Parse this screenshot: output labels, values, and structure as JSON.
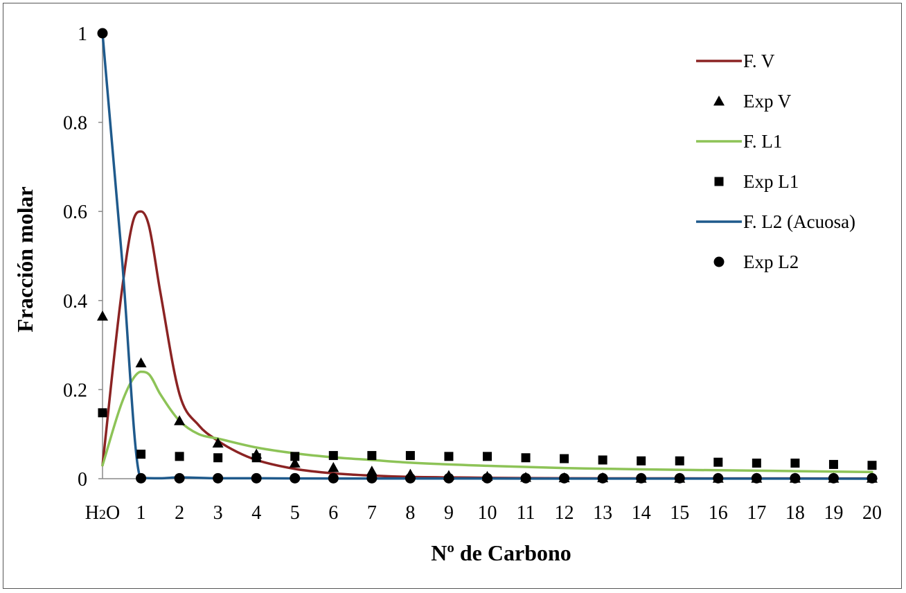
{
  "chart_data": {
    "type": "line",
    "title": "",
    "xlabel": "Nº de Carbono",
    "ylabel": "Fracción molar",
    "x_categories": [
      "H2O",
      "1",
      "2",
      "3",
      "4",
      "5",
      "6",
      "7",
      "8",
      "9",
      "10",
      "11",
      "12",
      "13",
      "14",
      "15",
      "16",
      "17",
      "18",
      "19",
      "20"
    ],
    "x_category_display": [
      {
        "main": "H",
        "sub": "2",
        "rest": "O"
      },
      {
        "main": "1"
      },
      {
        "main": "2"
      },
      {
        "main": "3"
      },
      {
        "main": "4"
      },
      {
        "main": "5"
      },
      {
        "main": "6"
      },
      {
        "main": "7"
      },
      {
        "main": "8"
      },
      {
        "main": "9"
      },
      {
        "main": "10"
      },
      {
        "main": "11"
      },
      {
        "main": "12"
      },
      {
        "main": "13"
      },
      {
        "main": "14"
      },
      {
        "main": "15"
      },
      {
        "main": "16"
      },
      {
        "main": "17"
      },
      {
        "main": "18"
      },
      {
        "main": "19"
      },
      {
        "main": "20"
      }
    ],
    "ylim": [
      0,
      1
    ],
    "yticks": [
      0,
      0.2,
      0.4,
      0.6,
      0.8,
      1
    ],
    "ytick_labels": [
      "0",
      "0.2",
      "0.4",
      "0.6",
      "0.8",
      "1"
    ],
    "grid": false,
    "legend_position": "top-right",
    "series": [
      {
        "name": "F. V",
        "kind": "line",
        "color": "#8B2323",
        "x": [
          0,
          0.5,
          0.8,
          1.0,
          1.2,
          1.5,
          2,
          2.5,
          3,
          3.5,
          4,
          5,
          6,
          7,
          8,
          9,
          10,
          12,
          14,
          16,
          18,
          20
        ],
        "y": [
          0.03,
          0.42,
          0.58,
          0.6,
          0.57,
          0.42,
          0.19,
          0.12,
          0.085,
          0.06,
          0.042,
          0.022,
          0.012,
          0.007,
          0.004,
          0.003,
          0.002,
          0.001,
          0.0008,
          0.0006,
          0.0005,
          0.0004
        ]
      },
      {
        "name": "Exp V",
        "kind": "marker",
        "marker": "triangle",
        "color": "#000000",
        "x": [
          0,
          1,
          2,
          3,
          4,
          5,
          6,
          7,
          8,
          9,
          10,
          11,
          12,
          13,
          14,
          15,
          16,
          17,
          18,
          19,
          20
        ],
        "y": [
          0.365,
          0.26,
          0.13,
          0.08,
          0.055,
          0.035,
          0.025,
          0.017,
          0.01,
          0.007,
          0.005,
          0.003,
          0.002,
          0.002,
          0.001,
          0.001,
          0.001,
          0.001,
          0.001,
          0.001,
          0.001
        ]
      },
      {
        "name": "F. L1",
        "kind": "line",
        "color": "#8DC357",
        "x": [
          0,
          0.5,
          0.8,
          1.0,
          1.2,
          1.5,
          2,
          2.5,
          3,
          4,
          5,
          6,
          7,
          8,
          10,
          12,
          14,
          16,
          18,
          20
        ],
        "y": [
          0.03,
          0.17,
          0.225,
          0.24,
          0.235,
          0.19,
          0.13,
          0.1,
          0.09,
          0.07,
          0.057,
          0.048,
          0.042,
          0.036,
          0.029,
          0.024,
          0.021,
          0.019,
          0.017,
          0.015
        ]
      },
      {
        "name": "Exp L1",
        "kind": "marker",
        "marker": "square",
        "color": "#000000",
        "x": [
          0,
          1,
          2,
          3,
          4,
          5,
          6,
          7,
          8,
          9,
          10,
          11,
          12,
          13,
          14,
          15,
          16,
          17,
          18,
          19,
          20
        ],
        "y": [
          0.148,
          0.055,
          0.05,
          0.047,
          0.047,
          0.05,
          0.052,
          0.052,
          0.052,
          0.05,
          0.05,
          0.047,
          0.045,
          0.042,
          0.04,
          0.04,
          0.037,
          0.035,
          0.035,
          0.032,
          0.03
        ]
      },
      {
        "name": "F. L2 (Acuosa)",
        "kind": "line",
        "color": "#1F5A8C",
        "x": [
          0,
          0.5,
          1,
          1.5,
          2,
          3,
          4,
          5,
          10,
          15,
          20
        ],
        "y": [
          1.0,
          0.5,
          0.002,
          0.001,
          0.003,
          0.001,
          0.001,
          0.0005,
          0.0003,
          0.0002,
          0.0001
        ]
      },
      {
        "name": "Exp L2",
        "kind": "marker",
        "marker": "circle",
        "color": "#000000",
        "x": [
          0,
          1,
          2,
          3,
          4,
          5,
          6,
          7,
          8,
          9,
          10,
          11,
          12,
          13,
          14,
          15,
          16,
          17,
          18,
          19,
          20
        ],
        "y": [
          1.0,
          0.001,
          0.001,
          0.001,
          0.001,
          0.001,
          0.001,
          0.001,
          0.001,
          0.001,
          0.001,
          0.001,
          0.001,
          0.001,
          0.001,
          0.001,
          0.001,
          0.001,
          0.001,
          0.001,
          0.001
        ]
      }
    ]
  }
}
